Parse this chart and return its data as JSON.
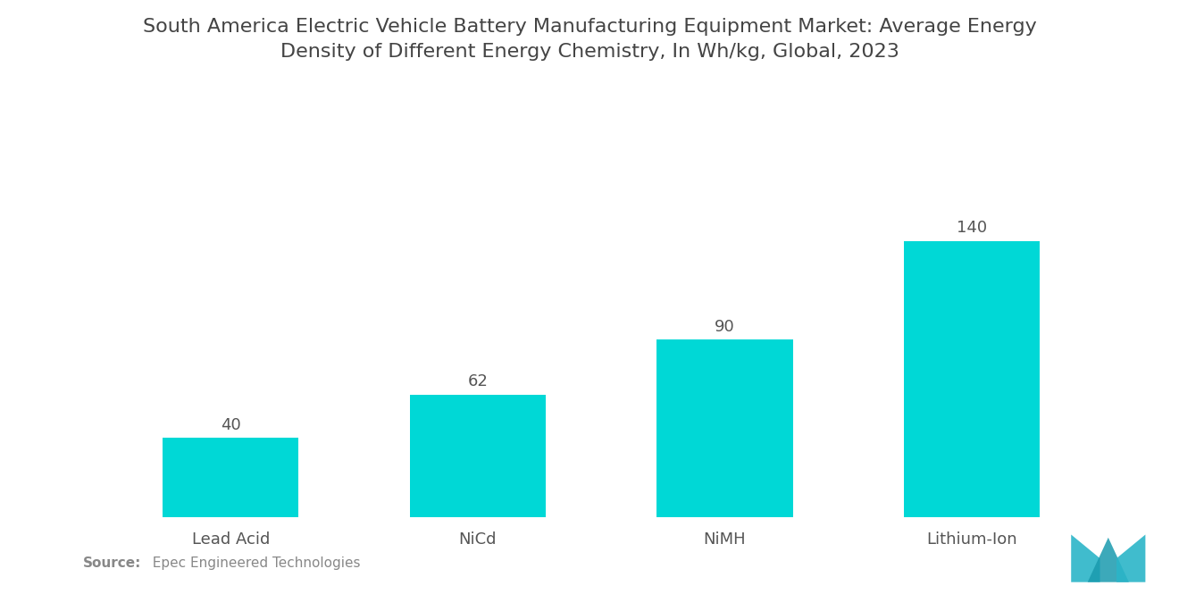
{
  "title": "South America Electric Vehicle Battery Manufacturing Equipment Market: Average Energy\nDensity of Different Energy Chemistry, In Wh/kg, Global, 2023",
  "categories": [
    "Lead Acid",
    "NiCd",
    "NiMH",
    "Lithium-Ion"
  ],
  "values": [
    40,
    62,
    90,
    140
  ],
  "bar_color": "#00D8D6",
  "background_color": "#ffffff",
  "title_fontsize": 16,
  "label_fontsize": 13,
  "value_fontsize": 13,
  "source_bold": "Source:",
  "source_rest": "  Epec Engineered Technologies",
  "ylim": [
    0,
    175
  ]
}
